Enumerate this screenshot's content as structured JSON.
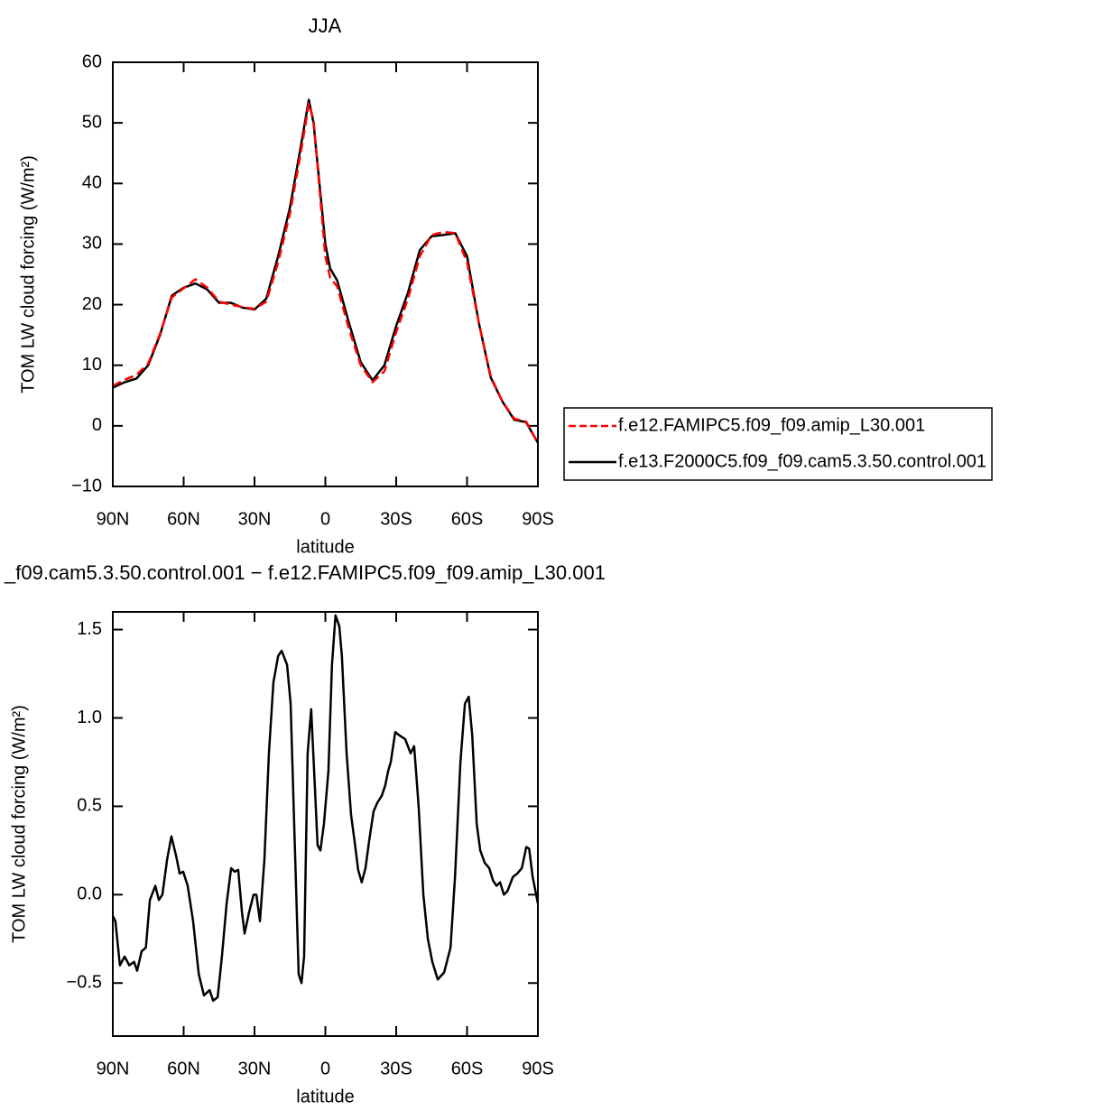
{
  "chart_data": [
    {
      "type": "line",
      "title": "JJA",
      "xlabel": "latitude",
      "ylabel": "TOM LW cloud forcing (W/m²)",
      "xlim": [
        90,
        -90
      ],
      "xticks": [
        {
          "value": 90,
          "label": "90N"
        },
        {
          "value": 60,
          "label": "60N"
        },
        {
          "value": 30,
          "label": "30N"
        },
        0,
        {
          "value": -30,
          "label": "30S"
        },
        {
          "value": -60,
          "label": "60S"
        },
        {
          "value": -90,
          "label": "90S"
        }
      ],
      "ylim": [
        -10,
        60
      ],
      "yticks": [
        {
          "value": -10,
          "label": "−10"
        },
        0,
        10,
        20,
        30,
        40,
        50,
        60
      ],
      "legend": "right",
      "x": [
        90,
        85,
        80,
        75,
        70,
        65,
        60,
        55,
        50,
        45,
        40,
        35,
        30,
        25,
        20,
        15,
        10,
        7,
        5,
        0,
        -2,
        -5,
        -10,
        -15,
        -20,
        -25,
        -30,
        -35,
        -40,
        -45,
        -50,
        -55,
        -60,
        -65,
        -70,
        -75,
        -80,
        -85,
        -90
      ],
      "series": [
        {
          "name": "f.e12.FAMIPC5.f09_f09.amip_L30.001",
          "color": "#ff0000",
          "linestyle": "dashed",
          "values": [
            6.6,
            7.6,
            8.4,
            10.3,
            15.2,
            21.2,
            22.7,
            24.2,
            22.8,
            20.5,
            20,
            19.6,
            19.3,
            20.5,
            27,
            35,
            46,
            53.2,
            50.5,
            28,
            24.5,
            23,
            16,
            10,
            7.2,
            9,
            15.5,
            21,
            28,
            31.5,
            32,
            31.8,
            27,
            17,
            8.2,
            4,
            1.2,
            0.7,
            -2.8
          ]
        },
        {
          "name": "f.e13.F2000C5.f09_f09.cam5.3.50.control.001",
          "color": "#000000",
          "linestyle": "solid",
          "values": [
            6.3,
            7.2,
            7.8,
            10,
            15,
            21.5,
            22.8,
            23.5,
            22.5,
            20.3,
            20.3,
            19.5,
            19.2,
            21,
            28,
            36,
            47,
            53.8,
            50,
            30,
            26,
            24,
            17,
            10.5,
            7.5,
            10,
            16.5,
            22,
            29,
            31.3,
            31.5,
            31.8,
            28,
            17,
            8,
            4,
            1,
            0.6,
            -2.8
          ]
        }
      ]
    },
    {
      "type": "line",
      "title": "_f09.cam5.3.50.control.001 − f.e12.FAMIPC5.f09_f09.amip_L30.001",
      "xlabel": "latitude",
      "ylabel": "TOM LW cloud forcing (W/m²)",
      "xlim": [
        90,
        -90
      ],
      "xticks": [
        {
          "value": 90,
          "label": "90N"
        },
        {
          "value": 60,
          "label": "60N"
        },
        {
          "value": 30,
          "label": "30N"
        },
        0,
        {
          "value": -30,
          "label": "30S"
        },
        {
          "value": -60,
          "label": "60S"
        },
        {
          "value": -90,
          "label": "90S"
        }
      ],
      "ylim": [
        -0.8,
        1.6
      ],
      "yticks": [
        {
          "value": -0.5,
          "label": "−0.5"
        },
        {
          "value": 0,
          "label": "0.0"
        },
        0.5,
        {
          "value": 1,
          "label": "1.0"
        },
        1.5
      ],
      "color": "#000000",
      "x": [
        90,
        88.9,
        87,
        85,
        83,
        81,
        79.7,
        77.8,
        76,
        74.3,
        72,
        70.5,
        69,
        67,
        65.2,
        63.2,
        61.7,
        60.2,
        58.3,
        56,
        53.6,
        51.4,
        49,
        47.5,
        45.6,
        43.8,
        41.8,
        39.9,
        38.4,
        36.9,
        35.3,
        34.2,
        32.3,
        30.4,
        29.2,
        27.7,
        25.8,
        23.9,
        22,
        20,
        18.5,
        16.2,
        14.7,
        13.2,
        11.3,
        10.1,
        9,
        7.5,
        6,
        4.4,
        3.3,
        2.1,
        0.6,
        -1.3,
        -2.8,
        -4.3,
        -5.9,
        -7,
        -9,
        -10.9,
        -12.4,
        -13.9,
        -15.4,
        -17,
        -18.5,
        -20.4,
        -22,
        -23.9,
        -25.4,
        -26.6,
        -27.7,
        -29.6,
        -31.5,
        -33.8,
        -36.1,
        -37.6,
        -39.5,
        -41.5,
        -43.4,
        -45.3,
        -47.6,
        -50.3,
        -53,
        -54.9,
        -57.2,
        -59.1,
        -60.7,
        -62.2,
        -64.1,
        -65.6,
        -67.5,
        -69.4,
        -71,
        -72.5,
        -74,
        -75.6,
        -77.1,
        -79.4,
        -81.3,
        -83.2,
        -85.1,
        -86.3,
        -87.8,
        -90
      ],
      "values": [
        -0.12,
        -0.15,
        -0.4,
        -0.35,
        -0.4,
        -0.38,
        -0.43,
        -0.32,
        -0.3,
        -0.03,
        0.05,
        -0.03,
        0,
        0.2,
        0.33,
        0.22,
        0.12,
        0.13,
        0.05,
        -0.15,
        -0.45,
        -0.57,
        -0.54,
        -0.6,
        -0.58,
        -0.35,
        -0.05,
        0.15,
        0.13,
        0.14,
        -0.1,
        -0.22,
        -0.1,
        0,
        0,
        -0.15,
        0.2,
        0.8,
        1.2,
        1.35,
        1.38,
        1.3,
        1.08,
        0.4,
        -0.45,
        -0.5,
        -0.35,
        0.8,
        1.05,
        0.6,
        0.28,
        0.25,
        0.4,
        0.7,
        1.3,
        1.58,
        1.52,
        1.35,
        0.8,
        0.45,
        0.3,
        0.14,
        0.07,
        0.15,
        0.3,
        0.47,
        0.52,
        0.56,
        0.62,
        0.7,
        0.75,
        0.92,
        0.9,
        0.88,
        0.8,
        0.84,
        0.5,
        0,
        -0.25,
        -0.38,
        -0.48,
        -0.44,
        -0.3,
        0.1,
        0.75,
        1.08,
        1.12,
        0.9,
        0.4,
        0.25,
        0.18,
        0.15,
        0.08,
        0.05,
        0.07,
        0,
        0.02,
        0.1,
        0.12,
        0.15,
        0.27,
        0.26,
        0.1,
        -0.05
      ]
    }
  ]
}
